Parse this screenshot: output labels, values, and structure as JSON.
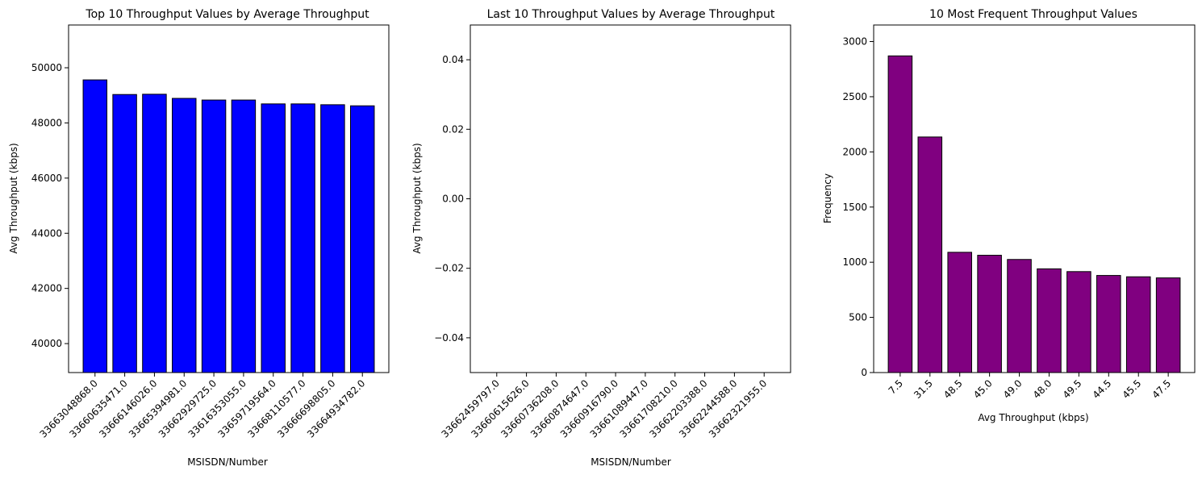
{
  "chart_data": [
    {
      "type": "bar",
      "title": "Top 10 Throughput Values by Average Throughput",
      "xlabel": "MSISDN/Number",
      "ylabel": "Avg Throughput (kbps)",
      "categories": [
        "33663048868.0",
        "33660635471.0",
        "33666146026.0",
        "33665394981.0",
        "33662929725.0",
        "33616353055.0",
        "33659719564.0",
        "33668110577.0",
        "33666698805.0",
        "33664934782.0"
      ],
      "values": [
        49560,
        49030,
        49040,
        48890,
        48830,
        48830,
        48690,
        48690,
        48660,
        48620
      ],
      "ylim": [
        38950,
        51550
      ],
      "yticks": [
        40000,
        42000,
        44000,
        46000,
        48000,
        50000
      ],
      "bar_color": "#0000ff",
      "edge_color": "#000000",
      "grid": false
    },
    {
      "type": "bar",
      "title": "Last 10 Throughput Values by Average Throughput",
      "xlabel": "MSISDN/Number",
      "ylabel": "Avg Throughput (kbps)",
      "categories": [
        "33662459797.0",
        "33660615626.0",
        "33660736208.0",
        "33660874647.0",
        "33660916790.0",
        "33661089447.0",
        "33661708210.0",
        "33662203388.0",
        "33662244588.0",
        "33662321955.0"
      ],
      "values": [
        0,
        0,
        0,
        0,
        0,
        0,
        0,
        0,
        0,
        0
      ],
      "ylim": [
        -0.05,
        0.05
      ],
      "yticks": [
        -0.04,
        -0.02,
        0.0,
        0.02,
        0.04
      ],
      "ytick_labels": [
        "−0.04",
        "−0.02",
        "0.00",
        "0.02",
        "0.04"
      ],
      "bar_color": "#0000ff",
      "edge_color": "#000000",
      "grid": false
    },
    {
      "type": "bar",
      "title": "10 Most Frequent Throughput Values",
      "xlabel": "Avg Throughput (kbps)",
      "ylabel": "Frequency",
      "categories": [
        "7.5",
        "31.5",
        "48.5",
        "45.0",
        "49.0",
        "48.0",
        "49.5",
        "44.5",
        "45.5",
        "47.5"
      ],
      "values": [
        2870,
        2135,
        1090,
        1063,
        1025,
        940,
        915,
        880,
        868,
        858
      ],
      "ylim": [
        0,
        3150
      ],
      "yticks": [
        0,
        500,
        1000,
        1500,
        2000,
        2500,
        3000
      ],
      "bar_color": "#800080",
      "edge_color": "#000000",
      "grid": false
    }
  ]
}
